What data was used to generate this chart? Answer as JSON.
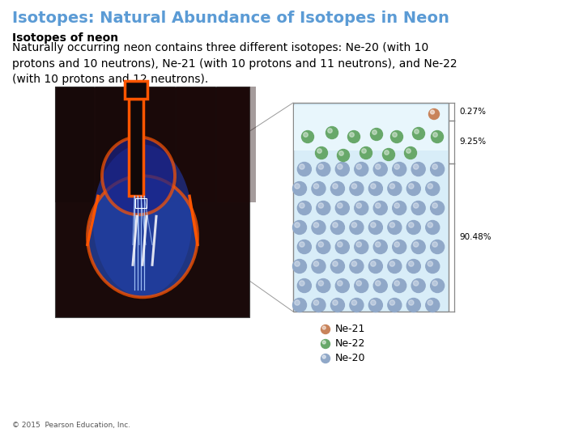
{
  "title": "Isotopes: Natural Abundance of Isotopes in Neon",
  "title_color": "#5B9BD5",
  "title_fontsize": 14,
  "bold_text": "Isotopes of neon",
  "body_text": "Naturally occurring neon contains three different isotopes: Ne-20 (with 10\nprotons and 10 neutrons), Ne-21 (with 10 protons and 11 neutrons), and Ne-22\n(with 10 protons and 12 neutrons).",
  "body_fontsize": 10,
  "copyright": "© 2015  Pearson Education, Inc.",
  "copyright_fontsize": 6.5,
  "bg_color": "#ffffff",
  "percentages": [
    "0.27%",
    "9.25%",
    "90.48%"
  ],
  "legend_labels": [
    "Ne-21",
    "Ne-22",
    "Ne-20"
  ],
  "legend_colors": [
    "#C8835A",
    "#68A86A",
    "#90A8C8"
  ],
  "ne20_color": "#90A8C8",
  "ne21_color": "#C8835A",
  "ne22_color": "#68A86A",
  "box_bg_top": "#E8F4FA",
  "box_bg_bot": "#C8E0EE",
  "box_edge": "#888888",
  "guitar_bg": "#1a0a0a",
  "lines_color": "#999999",
  "bracket_color": "#888888"
}
